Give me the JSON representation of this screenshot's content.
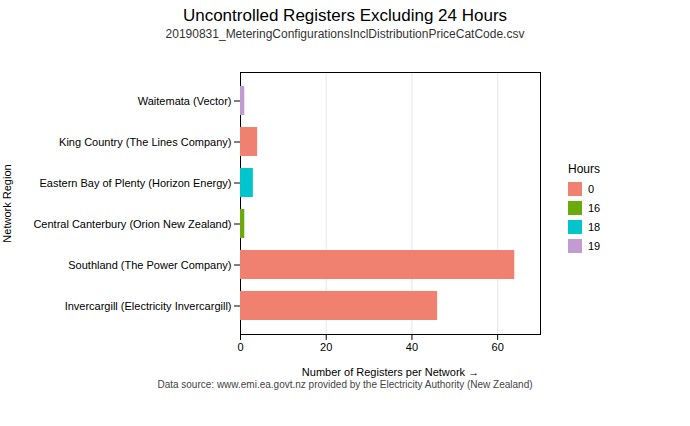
{
  "chart_data": {
    "type": "bar",
    "orientation": "horizontal",
    "title": "Uncontrolled Registers Excluding 24 Hours",
    "subtitle": "20190831_MeteringConfigurationsInclDistributionPriceCatCode.csv",
    "xlabel": "Number of Registers per Network",
    "ylabel": "Network Region",
    "caption": "Data source: www.emi.ea.govt.nz provided by the Electricity Authority (New Zealand)",
    "categories": [
      "Waitemata (Vector)",
      "King Country (The Lines Company)",
      "Eastern Bay of Plenty (Horizon Energy)",
      "Central Canterbury (Orion New Zealand)",
      "Southland (The Power Company)",
      "Invercargill (Electricity Invercargill)"
    ],
    "series": [
      {
        "name": "0",
        "color": "#F08070",
        "values": [
          null,
          4,
          null,
          null,
          64,
          46
        ]
      },
      {
        "name": "16",
        "color": "#6aaa0a",
        "values": [
          null,
          null,
          null,
          1,
          null,
          null
        ]
      },
      {
        "name": "18",
        "color": "#00C5CD",
        "values": [
          null,
          null,
          3,
          null,
          null,
          null
        ]
      },
      {
        "name": "19",
        "color": "#C39BD3",
        "values": [
          1,
          null,
          null,
          null,
          null,
          null
        ]
      }
    ],
    "legend_title": "Hours",
    "legend": "right",
    "xlim": [
      0,
      70
    ],
    "xticks": [
      0,
      20,
      40,
      60
    ],
    "grid": true
  }
}
